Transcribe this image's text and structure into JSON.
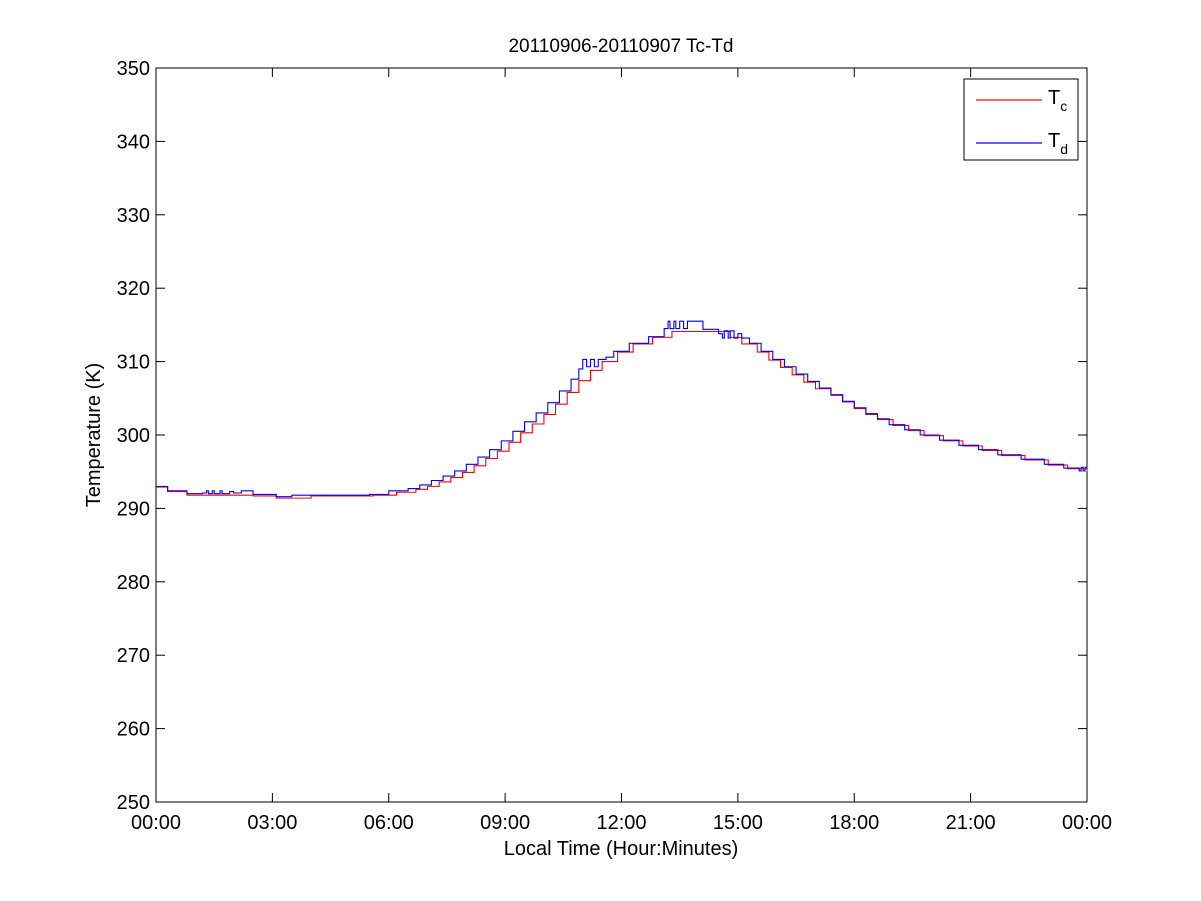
{
  "chart_data": {
    "type": "line",
    "title": "20110906-20110907 Tc-Td",
    "xlabel": "Local Time (Hour:Minutes)",
    "ylabel": "Temperature (K)",
    "xlim": [
      0,
      24
    ],
    "ylim": [
      250,
      350
    ],
    "x_unit": "hours since 00:00",
    "x_ticks": [
      0,
      3,
      6,
      9,
      12,
      15,
      18,
      21,
      24
    ],
    "x_tick_labels": [
      "00:00",
      "03:00",
      "06:00",
      "09:00",
      "12:00",
      "15:00",
      "18:00",
      "21:00",
      "00:00"
    ],
    "y_ticks": [
      250,
      260,
      270,
      280,
      290,
      300,
      310,
      320,
      330,
      340,
      350
    ],
    "y_tick_labels": [
      "250",
      "260",
      "270",
      "280",
      "290",
      "300",
      "310",
      "320",
      "330",
      "340",
      "350"
    ],
    "grid": false,
    "legend": {
      "placement": "top-right",
      "entries": [
        {
          "main": "T",
          "sub": "c",
          "color": "#ff0000"
        },
        {
          "main": "T",
          "sub": "d",
          "color": "#0000ff"
        }
      ]
    },
    "series": [
      {
        "name": "Tc",
        "color": "#ff0000",
        "step": true,
        "points": [
          [
            0.0,
            292.9
          ],
          [
            0.3,
            292.3
          ],
          [
            0.8,
            291.8
          ],
          [
            2.5,
            291.7
          ],
          [
            3.1,
            291.4
          ],
          [
            4.0,
            291.7
          ],
          [
            5.6,
            291.8
          ],
          [
            6.2,
            292.2
          ],
          [
            6.7,
            292.6
          ],
          [
            7.0,
            293.0
          ],
          [
            7.3,
            293.6
          ],
          [
            7.6,
            294.2
          ],
          [
            7.9,
            294.9
          ],
          [
            8.2,
            295.8
          ],
          [
            8.5,
            296.8
          ],
          [
            8.8,
            297.8
          ],
          [
            9.1,
            299.0
          ],
          [
            9.4,
            300.3
          ],
          [
            9.7,
            301.5
          ],
          [
            10.0,
            302.8
          ],
          [
            10.3,
            304.2
          ],
          [
            10.6,
            305.8
          ],
          [
            10.9,
            307.4
          ],
          [
            11.2,
            308.8
          ],
          [
            11.5,
            310.0
          ],
          [
            11.9,
            311.3
          ],
          [
            12.3,
            312.4
          ],
          [
            12.8,
            313.3
          ],
          [
            13.3,
            314.1
          ],
          [
            14.5,
            314.1
          ],
          [
            14.8,
            313.3
          ],
          [
            15.1,
            312.4
          ],
          [
            15.5,
            311.3
          ],
          [
            15.8,
            310.2
          ],
          [
            16.1,
            309.2
          ],
          [
            16.4,
            308.2
          ],
          [
            16.7,
            307.2
          ],
          [
            17.0,
            306.3
          ],
          [
            17.4,
            305.4
          ],
          [
            17.7,
            304.5
          ],
          [
            18.0,
            303.6
          ],
          [
            18.3,
            302.8
          ],
          [
            18.6,
            302.1
          ],
          [
            19.0,
            301.3
          ],
          [
            19.4,
            300.6
          ],
          [
            19.8,
            299.9
          ],
          [
            20.3,
            299.2
          ],
          [
            20.8,
            298.5
          ],
          [
            21.3,
            297.9
          ],
          [
            21.8,
            297.2
          ],
          [
            22.4,
            296.6
          ],
          [
            23.0,
            295.9
          ],
          [
            23.5,
            295.4
          ],
          [
            24.0,
            295.0
          ]
        ]
      },
      {
        "name": "Td",
        "color": "#0000ff",
        "step": true,
        "points": [
          [
            0.0,
            293.0
          ],
          [
            0.3,
            292.4
          ],
          [
            0.8,
            292.0
          ],
          [
            1.2,
            292.1
          ],
          [
            1.3,
            292.4
          ],
          [
            1.35,
            292.0
          ],
          [
            1.45,
            292.4
          ],
          [
            1.5,
            292.0
          ],
          [
            1.65,
            292.4
          ],
          [
            1.7,
            292.0
          ],
          [
            1.9,
            292.3
          ],
          [
            2.0,
            292.1
          ],
          [
            2.2,
            292.4
          ],
          [
            2.5,
            291.9
          ],
          [
            3.1,
            291.6
          ],
          [
            3.5,
            291.8
          ],
          [
            5.5,
            291.9
          ],
          [
            6.0,
            292.4
          ],
          [
            6.5,
            292.7
          ],
          [
            6.8,
            293.2
          ],
          [
            7.1,
            293.8
          ],
          [
            7.4,
            294.4
          ],
          [
            7.7,
            295.1
          ],
          [
            8.0,
            296.0
          ],
          [
            8.3,
            297.0
          ],
          [
            8.6,
            298.0
          ],
          [
            8.9,
            299.2
          ],
          [
            9.2,
            300.5
          ],
          [
            9.5,
            301.8
          ],
          [
            9.8,
            303.0
          ],
          [
            10.1,
            304.4
          ],
          [
            10.4,
            306.0
          ],
          [
            10.7,
            307.6
          ],
          [
            10.9,
            309.0
          ],
          [
            11.0,
            310.3
          ],
          [
            11.1,
            309.3
          ],
          [
            11.2,
            310.3
          ],
          [
            11.3,
            309.3
          ],
          [
            11.4,
            310.3
          ],
          [
            11.6,
            310.6
          ],
          [
            11.8,
            311.4
          ],
          [
            12.2,
            312.5
          ],
          [
            12.7,
            313.4
          ],
          [
            13.1,
            314.5
          ],
          [
            13.2,
            315.5
          ],
          [
            13.25,
            314.5
          ],
          [
            13.35,
            315.5
          ],
          [
            13.4,
            314.5
          ],
          [
            13.5,
            315.5
          ],
          [
            13.6,
            314.5
          ],
          [
            13.7,
            315.5
          ],
          [
            13.8,
            315.5
          ],
          [
            14.1,
            314.4
          ],
          [
            14.5,
            313.8
          ],
          [
            14.6,
            313.2
          ],
          [
            14.65,
            314.2
          ],
          [
            14.75,
            313.2
          ],
          [
            14.8,
            314.2
          ],
          [
            14.9,
            313.2
          ],
          [
            15.0,
            313.8
          ],
          [
            15.1,
            313.2
          ],
          [
            15.3,
            312.5
          ],
          [
            15.6,
            311.4
          ],
          [
            15.9,
            310.3
          ],
          [
            16.2,
            309.3
          ],
          [
            16.5,
            308.3
          ],
          [
            16.8,
            307.3
          ],
          [
            17.1,
            306.4
          ],
          [
            17.4,
            305.5
          ],
          [
            17.7,
            304.6
          ],
          [
            18.0,
            303.7
          ],
          [
            18.3,
            302.9
          ],
          [
            18.6,
            302.2
          ],
          [
            18.9,
            301.4
          ],
          [
            19.3,
            300.7
          ],
          [
            19.7,
            300.0
          ],
          [
            20.2,
            299.3
          ],
          [
            20.7,
            298.6
          ],
          [
            21.2,
            298.0
          ],
          [
            21.7,
            297.3
          ],
          [
            22.3,
            296.7
          ],
          [
            22.9,
            296.0
          ],
          [
            23.4,
            295.5
          ],
          [
            23.8,
            295.1
          ],
          [
            23.85,
            295.6
          ],
          [
            23.9,
            295.1
          ],
          [
            23.95,
            295.6
          ],
          [
            24.0,
            295.4
          ]
        ]
      }
    ]
  }
}
